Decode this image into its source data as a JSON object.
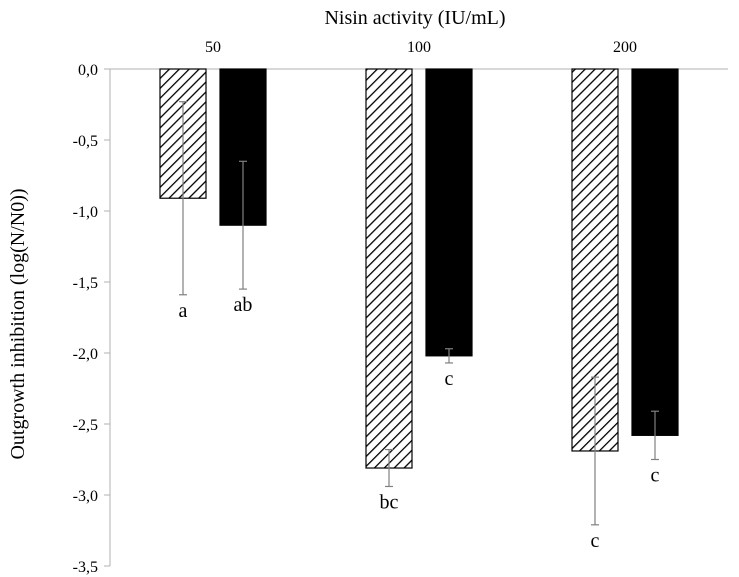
{
  "chart_data": {
    "type": "bar",
    "xlabel": "Nisin activity (IU/mL)",
    "ylabel": "Outgrowth inhibition  (log(N/N0))",
    "categories": [
      "50",
      "100",
      "200"
    ],
    "ylim": [
      -3.5,
      0
    ],
    "yticks": [
      "0,0",
      "-0,5",
      "-1,0",
      "-1,5",
      "-2,0",
      "-2,5",
      "-3,0",
      "-3,5"
    ],
    "ytick_values": [
      0,
      -0.5,
      -1.0,
      -1.5,
      -2.0,
      -2.5,
      -3.0,
      -3.5
    ],
    "grid": false,
    "legend": false,
    "series": [
      {
        "pattern": "hatched",
        "values": [
          -0.91,
          -2.81,
          -2.69
        ],
        "errors": [
          0.68,
          0.13,
          0.52
        ],
        "labels": [
          "a",
          "bc",
          "c"
        ]
      },
      {
        "pattern": "solid",
        "values": [
          -1.1,
          -2.02,
          -2.58
        ],
        "errors": [
          0.45,
          0.05,
          0.17
        ],
        "labels": [
          "ab",
          "c",
          "c"
        ]
      }
    ],
    "colors": {
      "solid": "#000000",
      "hatch": "#000000",
      "axis": "#b0b0b0",
      "errorbar": "#808080"
    }
  }
}
